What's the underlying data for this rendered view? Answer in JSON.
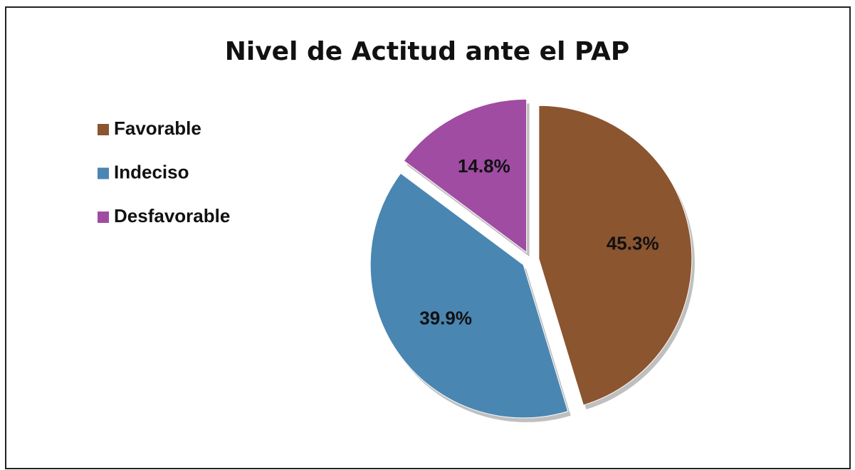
{
  "chart_data": {
    "type": "pie",
    "title": "Nivel de Actitud ante el PAP",
    "categories": [
      "Favorable",
      "Indeciso",
      "Desfavorable"
    ],
    "values": [
      45.3,
      39.9,
      14.8
    ],
    "value_labels": [
      "45.3%",
      "39.9%",
      "14.8%"
    ],
    "colors": [
      "#8b5530",
      "#4a86b2",
      "#a04ca3"
    ],
    "legend": "left"
  }
}
